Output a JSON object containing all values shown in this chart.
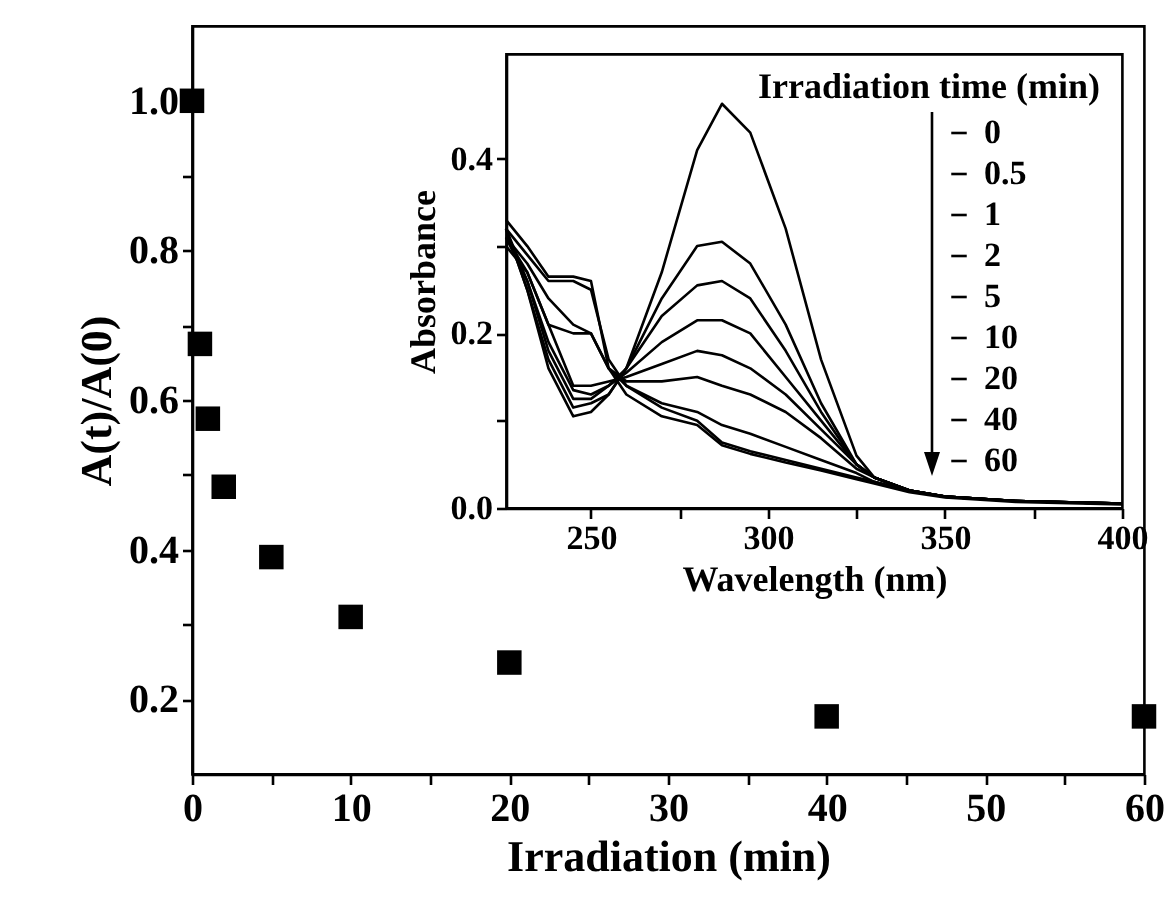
{
  "chart_data": [
    {
      "type": "scatter",
      "xlabel": "Irradiation (min)",
      "ylabel": "A(t)/A(0)",
      "marker": "square",
      "color": "#000000",
      "x": [
        0,
        0.5,
        1,
        2,
        5,
        10,
        20,
        40,
        60
      ],
      "values": [
        1.0,
        0.675,
        0.575,
        0.484,
        0.39,
        0.31,
        0.249,
        0.177,
        0.177
      ],
      "xlim": [
        0,
        60
      ],
      "ylim": [
        0.1,
        1.1
      ],
      "xticks": [
        0,
        {
          "value": 5,
          "label": null
        },
        10,
        {
          "value": 15,
          "label": null
        },
        20,
        {
          "value": 25,
          "label": null
        },
        30,
        {
          "value": 35,
          "label": null
        },
        40,
        {
          "value": 45,
          "label": null
        },
        50,
        {
          "value": 55,
          "label": null
        },
        60
      ],
      "yticks": [
        0.2,
        {
          "value": 0.3,
          "label": null
        },
        0.4,
        {
          "value": 0.5,
          "label": null
        },
        0.6,
        {
          "value": 0.7,
          "label": null
        },
        0.8,
        {
          "value": 0.9,
          "label": null
        },
        {
          "value": 1,
          "label": "1.0"
        }
      ]
    },
    {
      "type": "line",
      "xlabel": "Wavelength (nm)",
      "ylabel": "Absorbance",
      "legend_title": "Irradiation time (min)",
      "legend": "right",
      "line_style": "solid",
      "x": [
        226,
        232,
        238,
        245,
        250,
        255,
        260,
        270,
        280,
        287,
        295,
        305,
        315,
        325,
        330,
        340,
        350,
        370,
        400
      ],
      "xlim": [
        226,
        400
      ],
      "ylim": [
        0,
        0.52
      ],
      "xticks": [
        250,
        {
          "value": 275,
          "label": null
        },
        300,
        {
          "value": 325,
          "label": null
        },
        350,
        {
          "value": 375,
          "label": null
        },
        400
      ],
      "yticks": [
        {
          "value": 0,
          "label": "0.0"
        },
        {
          "value": 0.1,
          "label": null
        },
        0.2,
        {
          "value": 0.3,
          "label": null
        },
        0.4
      ],
      "series": [
        {
          "name": "0",
          "color": "#000000",
          "values": [
            0.32,
            0.25,
            0.16,
            0.105,
            0.11,
            0.13,
            0.16,
            0.27,
            0.41,
            0.463,
            0.43,
            0.32,
            0.17,
            0.06,
            0.035,
            0.02,
            0.013,
            0.008,
            0.005
          ]
        },
        {
          "name": "0.5",
          "color": "#000000",
          "values": [
            0.32,
            0.25,
            0.17,
            0.115,
            0.12,
            0.13,
            0.16,
            0.24,
            0.3,
            0.305,
            0.28,
            0.21,
            0.12,
            0.05,
            0.035,
            0.02,
            0.013,
            0.008,
            0.005
          ]
        },
        {
          "name": "1",
          "color": "#000000",
          "values": [
            0.32,
            0.26,
            0.18,
            0.125,
            0.125,
            0.14,
            0.16,
            0.22,
            0.255,
            0.26,
            0.24,
            0.18,
            0.11,
            0.05,
            0.035,
            0.02,
            0.013,
            0.008,
            0.005
          ]
        },
        {
          "name": "2",
          "color": "#000000",
          "values": [
            0.31,
            0.26,
            0.19,
            0.135,
            0.13,
            0.14,
            0.155,
            0.19,
            0.215,
            0.215,
            0.2,
            0.15,
            0.1,
            0.05,
            0.035,
            0.02,
            0.013,
            0.008,
            0.005
          ]
        },
        {
          "name": "5",
          "color": "#000000",
          "values": [
            0.31,
            0.27,
            0.21,
            0.14,
            0.14,
            0.145,
            0.15,
            0.165,
            0.18,
            0.175,
            0.16,
            0.13,
            0.09,
            0.05,
            0.035,
            0.02,
            0.013,
            0.008,
            0.005
          ]
        },
        {
          "name": "10",
          "color": "#000000",
          "values": [
            0.3,
            0.27,
            0.21,
            0.2,
            0.2,
            0.16,
            0.145,
            0.145,
            0.15,
            0.14,
            0.13,
            0.11,
            0.08,
            0.045,
            0.035,
            0.02,
            0.013,
            0.008,
            0.005
          ]
        },
        {
          "name": "20",
          "color": "#000000",
          "values": [
            0.31,
            0.28,
            0.24,
            0.21,
            0.2,
            0.16,
            0.14,
            0.12,
            0.11,
            0.095,
            0.085,
            0.07,
            0.055,
            0.04,
            0.03,
            0.02,
            0.013,
            0.008,
            0.005
          ]
        },
        {
          "name": "40",
          "color": "#000000",
          "values": [
            0.32,
            0.29,
            0.26,
            0.26,
            0.25,
            0.17,
            0.14,
            0.115,
            0.1,
            0.075,
            0.065,
            0.055,
            0.045,
            0.035,
            0.03,
            0.02,
            0.013,
            0.008,
            0.005
          ]
        },
        {
          "name": "60",
          "color": "#000000",
          "values": [
            0.33,
            0.3,
            0.265,
            0.265,
            0.26,
            0.16,
            0.13,
            0.105,
            0.095,
            0.072,
            0.062,
            0.052,
            0.043,
            0.033,
            0.028,
            0.018,
            0.012,
            0.007,
            0.004
          ]
        }
      ]
    }
  ]
}
